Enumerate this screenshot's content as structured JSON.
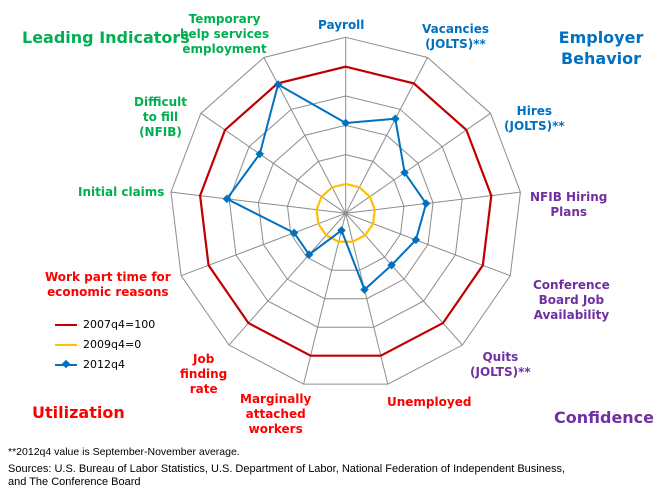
{
  "chart_data": {
    "type": "radar",
    "axes": [
      "Payroll",
      "Vacancies (JOLTS)**",
      "Hires (JOLTS)**",
      "NFIB Hiring Plans",
      "Conference Board Job Availability",
      "Quits (JOLTS)**",
      "Unemployed",
      "Marginally attached workers",
      "Job finding rate",
      "Work part time for economic reasons",
      "Initial claims",
      "Difficult to fill (NFIB)",
      "Temporary help services employment"
    ],
    "axis_label_colors": [
      "#0070c0",
      "#0070c0",
      "#0070c0",
      "#7030a0",
      "#7030a0",
      "#7030a0",
      "#ff0000",
      "#ff0000",
      "#ff0000",
      "#ff0000",
      "#00b050",
      "#00b050",
      "#00b050"
    ],
    "rlim": [
      -25,
      125
    ],
    "ring_step": 25,
    "grid": true,
    "legend_placement": "left",
    "series": [
      {
        "name": "2007q4=100",
        "color": "#c00000",
        "values": [
          100,
          100,
          100,
          100,
          100,
          100,
          100,
          100,
          100,
          100,
          100,
          100,
          100
        ]
      },
      {
        "name": "2009q4=0",
        "color": "#ffc000",
        "values": [
          0,
          0,
          0,
          0,
          0,
          0,
          0,
          0,
          0,
          0,
          0,
          0,
          0
        ]
      },
      {
        "name": "2012q4",
        "color": "#0070c0",
        "marker": "diamond",
        "values": [
          52,
          66,
          36,
          44,
          39,
          34,
          42,
          -10,
          22,
          22,
          77,
          64,
          99
        ]
      }
    ]
  },
  "quadrants": {
    "leading": "Leading Indicators",
    "employer": "Employer Behavior",
    "utilization": "Utilization",
    "confidence": "Confidence"
  },
  "labels": {
    "payroll": "Payroll",
    "vacancies": [
      "Vacancies",
      "(JOLTS)**"
    ],
    "hires": [
      "Hires",
      "(JOLTS)**"
    ],
    "nfib": [
      "NFIB Hiring",
      "Plans"
    ],
    "cb": [
      "Conference",
      "Board Job",
      "Availability"
    ],
    "quits": [
      "Quits",
      "(JOLTS)**"
    ],
    "unemployed": "Unemployed",
    "marg": [
      "Marginally",
      "attached",
      "workers"
    ],
    "jobfind": [
      "Job",
      "finding",
      "rate"
    ],
    "parttime": [
      "Work part time for",
      "economic reasons"
    ],
    "claims": "Initial claims",
    "difficult": [
      "Difficult",
      "to fill",
      "(NFIB)"
    ],
    "temp": [
      "Temporary",
      "help services",
      "employment"
    ]
  },
  "note": "**2012q4 value is September-November average.",
  "sources": [
    "Sources:  U.S. Bureau of Labor Statistics, U.S. Department of Labor, National Federation of Independent Business,",
    "and The Conference Board"
  ]
}
